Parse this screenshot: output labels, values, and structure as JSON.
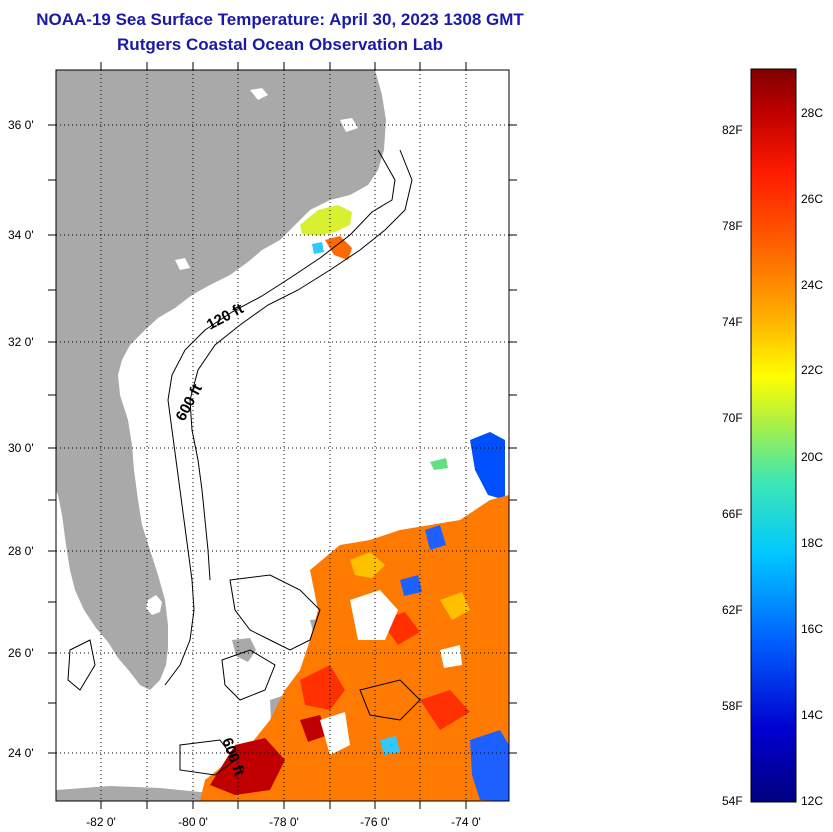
{
  "header": {
    "title": "NOAA-19 Sea Surface Temperature:  April 30, 2023 1308 GMT",
    "subtitle": "Rutgers Coastal Ocean Observation Lab"
  },
  "map": {
    "lat_labels": [
      "36 0'",
      "34 0'",
      "32 0'",
      "30 0'",
      "28 0'",
      "26 0'",
      "24 0'"
    ],
    "lon_labels": [
      "-82 0'",
      "-80 0'",
      "-78 0'",
      "-76 0'",
      "-74 0'"
    ],
    "contour_labels": [
      "120 ft",
      "600 ft",
      "600 ft"
    ],
    "extent": {
      "lon": [
        -83,
        -73
      ],
      "lat": [
        23,
        37
      ]
    }
  },
  "colorbar": {
    "fahrenheit_labels": [
      "82F",
      "78F",
      "74F",
      "70F",
      "66F",
      "62F",
      "58F",
      "54F"
    ],
    "celsius_labels": [
      "28C",
      "26C",
      "24C",
      "22C",
      "20C",
      "18C",
      "16C",
      "14C",
      "12C"
    ],
    "colors": [
      "#0000a0",
      "#0050ff",
      "#00c0ff",
      "#30e0b0",
      "#c0ff30",
      "#ffe000",
      "#ff8000",
      "#ff2000",
      "#b00000",
      "#800000"
    ]
  },
  "colors": {
    "land": "#a9a9a9",
    "frame": "#000000",
    "title": "#1a1aa6"
  }
}
